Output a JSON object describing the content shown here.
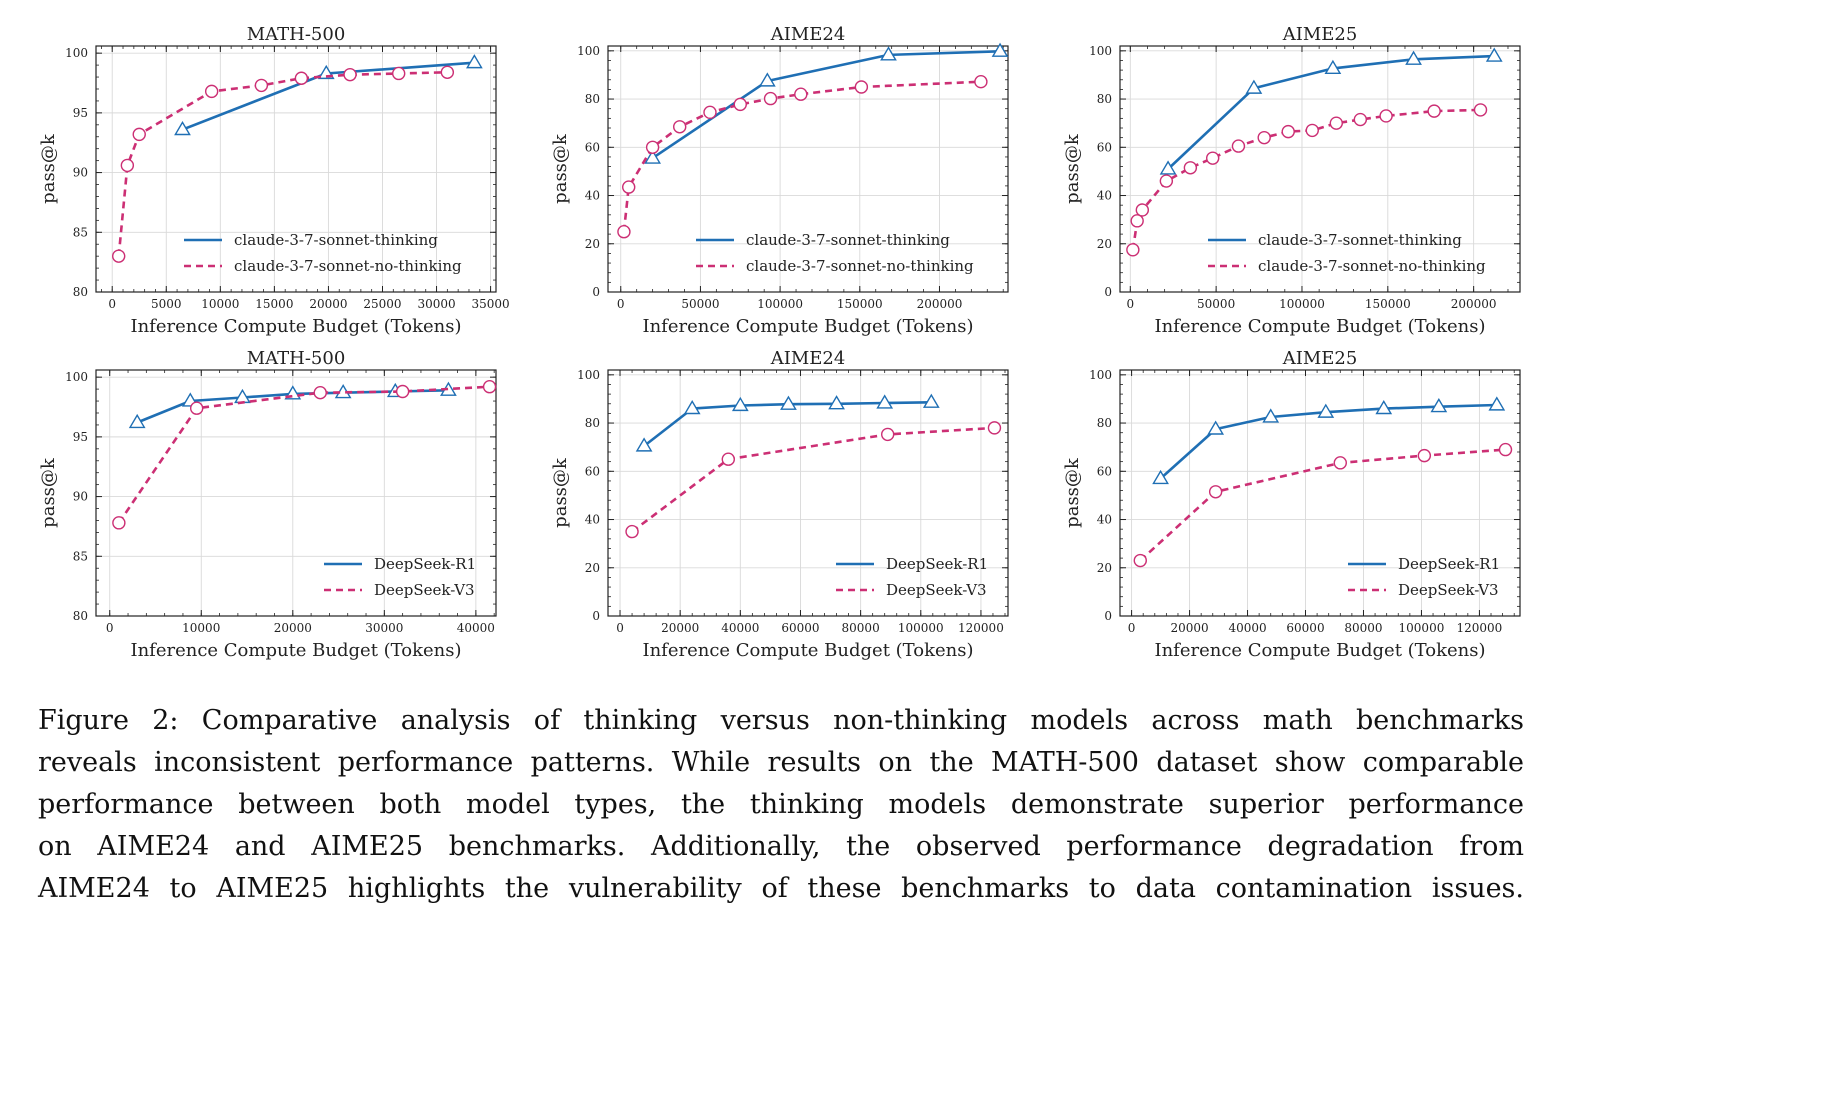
{
  "colors": {
    "thinking": "#1f6fb4",
    "nothinking": "#cc2f74",
    "grid": "#d9d9d9",
    "axis": "#222222"
  },
  "chart_data": [
    {
      "type": "line",
      "title": "MATH-500",
      "xlabel": "Inference Compute Budget (Tokens)",
      "ylabel": "pass@k",
      "xlim": [
        -1500,
        35500
      ],
      "ylim": [
        80,
        100.6
      ],
      "xticks": [
        0,
        5000,
        10000,
        15000,
        20000,
        25000,
        30000,
        35000
      ],
      "xtick_labels": [
        "0",
        "5000",
        "10000",
        "15000",
        "20000",
        "25000",
        "30000",
        "35000"
      ],
      "yticks": [
        80,
        85,
        90,
        95,
        100
      ],
      "ytick_labels": [
        "80",
        "85",
        "90",
        "95",
        "100"
      ],
      "legend": "lower-right",
      "series": [
        {
          "name": "claude-3-7-sonnet-thinking",
          "style": "solid",
          "marker": "triangle",
          "x": [
            6500,
            19800,
            33500
          ],
          "y": [
            93.6,
            98.3,
            99.2
          ]
        },
        {
          "name": "claude-3-7-sonnet-no-thinking",
          "style": "dashed",
          "marker": "circle",
          "x": [
            600,
            1400,
            2500,
            9200,
            13800,
            17500,
            22000,
            26500,
            31000
          ],
          "y": [
            83.0,
            90.6,
            93.2,
            96.8,
            97.3,
            97.9,
            98.2,
            98.3,
            98.4
          ]
        }
      ]
    },
    {
      "type": "line",
      "title": "AIME24",
      "xlabel": "Inference Compute Budget (Tokens)",
      "ylabel": "pass@k",
      "xlim": [
        -8000,
        243000
      ],
      "ylim": [
        0,
        102
      ],
      "xticks": [
        0,
        50000,
        100000,
        150000,
        200000
      ],
      "xtick_labels": [
        "0",
        "50000",
        "100000",
        "150000",
        "200000"
      ],
      "yticks": [
        0,
        20,
        40,
        60,
        80,
        100
      ],
      "ytick_labels": [
        "0",
        "20",
        "40",
        "60",
        "80",
        "100"
      ],
      "legend": "lower-right",
      "series": [
        {
          "name": "claude-3-7-sonnet-thinking",
          "style": "solid",
          "marker": "triangle",
          "x": [
            20000,
            92000,
            168000,
            238000
          ],
          "y": [
            55.5,
            87.5,
            98.3,
            99.8
          ]
        },
        {
          "name": "claude-3-7-sonnet-no-thinking",
          "style": "dashed",
          "marker": "circle",
          "x": [
            2000,
            5000,
            20000,
            37000,
            56000,
            75000,
            94000,
            113000,
            151000,
            226000
          ],
          "y": [
            25,
            43.5,
            60,
            68.5,
            74.5,
            77.8,
            80.2,
            82,
            85,
            87.2
          ]
        }
      ]
    },
    {
      "type": "line",
      "title": "AIME25",
      "xlabel": "Inference Compute Budget (Tokens)",
      "ylabel": "pass@k",
      "xlim": [
        -6000,
        227000
      ],
      "ylim": [
        0,
        102
      ],
      "xticks": [
        0,
        50000,
        100000,
        150000,
        200000
      ],
      "xtick_labels": [
        "0",
        "50000",
        "100000",
        "150000",
        "200000"
      ],
      "yticks": [
        0,
        20,
        40,
        60,
        80,
        100
      ],
      "ytick_labels": [
        "0",
        "20",
        "40",
        "60",
        "80",
        "100"
      ],
      "legend": "lower-right",
      "series": [
        {
          "name": "claude-3-7-sonnet-thinking",
          "style": "solid",
          "marker": "triangle",
          "x": [
            22000,
            72000,
            118000,
            165000,
            212000
          ],
          "y": [
            51,
            84.5,
            92.7,
            96.5,
            97.8
          ]
        },
        {
          "name": "claude-3-7-sonnet-no-thinking",
          "style": "dashed",
          "marker": "circle",
          "x": [
            1500,
            4000,
            7000,
            21000,
            35000,
            48000,
            63000,
            78000,
            92000,
            106000,
            120000,
            134000,
            149000,
            177000,
            204000
          ],
          "y": [
            17.5,
            29.5,
            34,
            46,
            51.5,
            55.5,
            60.5,
            64,
            66.5,
            67,
            70,
            71.5,
            73,
            75,
            75.5
          ]
        }
      ]
    },
    {
      "type": "line",
      "title": "MATH-500",
      "xlabel": "Inference Compute Budget (Tokens)",
      "ylabel": "pass@k",
      "xlim": [
        -1500,
        42200
      ],
      "ylim": [
        80,
        100.6
      ],
      "xticks": [
        0,
        10000,
        20000,
        30000,
        40000
      ],
      "xtick_labels": [
        "0",
        "10000",
        "20000",
        "30000",
        "40000"
      ],
      "yticks": [
        80,
        85,
        90,
        95,
        100
      ],
      "ytick_labels": [
        "80",
        "85",
        "90",
        "95",
        "100"
      ],
      "legend": "lower-right",
      "series": [
        {
          "name": "DeepSeek-R1",
          "style": "solid",
          "marker": "triangle",
          "x": [
            3000,
            8800,
            14500,
            20000,
            25500,
            31200,
            37000
          ],
          "y": [
            96.2,
            98.0,
            98.3,
            98.6,
            98.7,
            98.8,
            98.9
          ]
        },
        {
          "name": "DeepSeek-V3",
          "style": "dashed",
          "marker": "circle",
          "x": [
            1000,
            9500,
            23000,
            32000,
            41500
          ],
          "y": [
            87.8,
            97.4,
            98.7,
            98.8,
            99.2
          ]
        }
      ]
    },
    {
      "type": "line",
      "title": "AIME24",
      "xlabel": "Inference Compute Budget (Tokens)",
      "ylabel": "pass@k",
      "xlim": [
        -4000,
        129000
      ],
      "ylim": [
        0,
        102
      ],
      "xticks": [
        0,
        20000,
        40000,
        60000,
        80000,
        100000,
        120000
      ],
      "xtick_labels": [
        "0",
        "20000",
        "40000",
        "60000",
        "80000",
        "100000",
        "120000"
      ],
      "yticks": [
        0,
        20,
        40,
        60,
        80,
        100
      ],
      "ytick_labels": [
        "0",
        "20",
        "40",
        "60",
        "80",
        "100"
      ],
      "legend": "lower-right",
      "series": [
        {
          "name": "DeepSeek-R1",
          "style": "solid",
          "marker": "triangle",
          "x": [
            8000,
            24000,
            40000,
            56000,
            72000,
            88000,
            103500
          ],
          "y": [
            70.5,
            86,
            87.3,
            87.8,
            88,
            88.3,
            88.6
          ]
        },
        {
          "name": "DeepSeek-V3",
          "style": "dashed",
          "marker": "circle",
          "x": [
            4000,
            36000,
            89000,
            124500
          ],
          "y": [
            35,
            65,
            75.3,
            78
          ]
        }
      ]
    },
    {
      "type": "line",
      "title": "AIME25",
      "xlabel": "Inference Compute Budget (Tokens)",
      "ylabel": "pass@k",
      "xlim": [
        -4000,
        134000
      ],
      "ylim": [
        0,
        102
      ],
      "xticks": [
        0,
        20000,
        40000,
        60000,
        80000,
        100000,
        120000
      ],
      "xtick_labels": [
        "0",
        "20000",
        "40000",
        "60000",
        "80000",
        "100000",
        "120000"
      ],
      "yticks": [
        0,
        20,
        40,
        60,
        80,
        100
      ],
      "ytick_labels": [
        "0",
        "20",
        "40",
        "60",
        "80",
        "100"
      ],
      "legend": "lower-right",
      "series": [
        {
          "name": "DeepSeek-R1",
          "style": "solid",
          "marker": "triangle",
          "x": [
            10000,
            29000,
            48000,
            67000,
            87000,
            106000,
            126000
          ],
          "y": [
            57,
            77.5,
            82.5,
            84.5,
            86,
            86.8,
            87.5
          ]
        },
        {
          "name": "DeepSeek-V3",
          "style": "dashed",
          "marker": "circle",
          "x": [
            3000,
            29000,
            72000,
            101000,
            129000
          ],
          "y": [
            23,
            51.5,
            63.5,
            66.5,
            69
          ]
        }
      ]
    }
  ],
  "caption_lines": [
    "Figure 2: Comparative analysis of thinking versus non-thinking models across math benchmarks",
    "reveals inconsistent performance patterns. While results on the MATH-500 dataset show comparable",
    "performance between both model types, the thinking models demonstrate superior performance",
    "on AIME24 and AIME25 benchmarks. Additionally, the observed performance degradation from",
    "AIME24 to AIME25 highlights the vulnerability of these benchmarks to data contamination issues."
  ]
}
